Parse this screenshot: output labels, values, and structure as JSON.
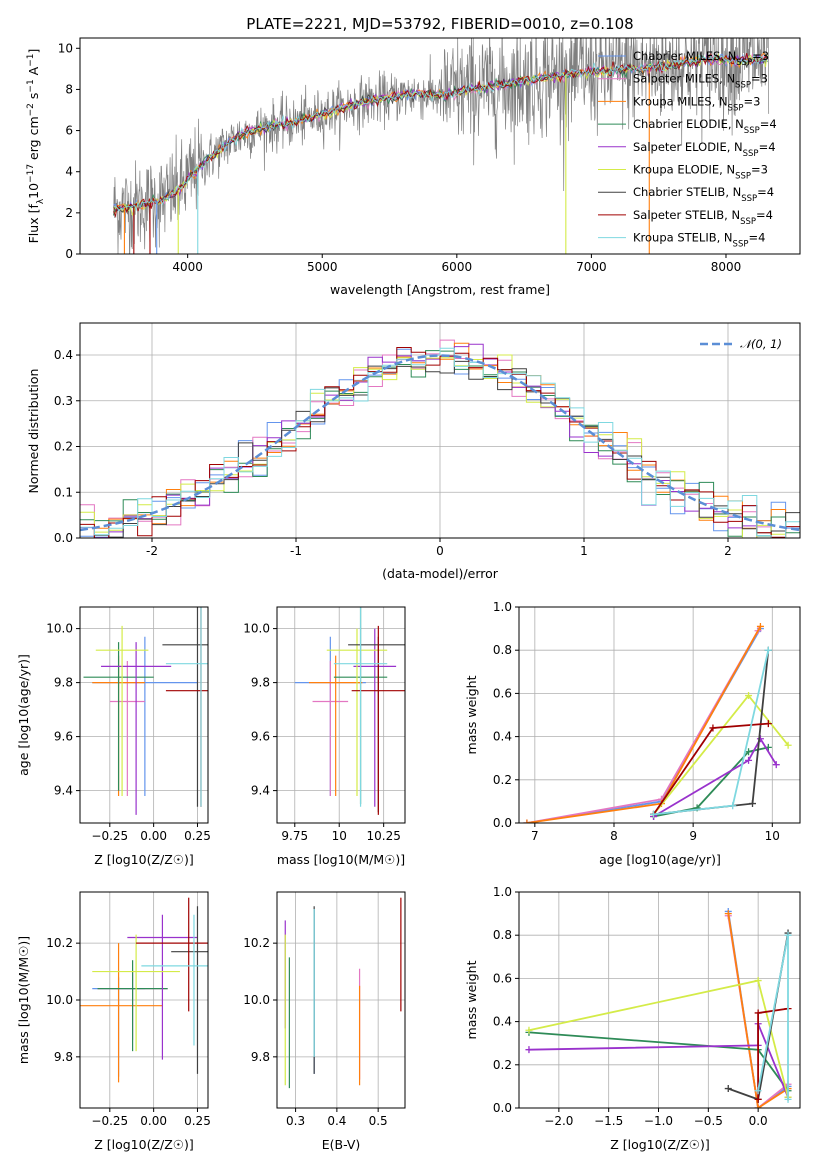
{
  "chart_data": [
    {
      "id": "spectrum",
      "type": "line",
      "title": "PLATE=2221, MJD=53792, FIBERID=0010, z=0.108",
      "xlabel": "wavelength [Angstrom, rest frame]",
      "ylabel": "Flux [f_λ10^-17 erg cm^-2 s^-1 A^-1]",
      "xlim": [
        3200,
        8550
      ],
      "ylim": [
        0,
        10.5
      ],
      "xticks": [
        4000,
        5000,
        6000,
        7000,
        8000
      ],
      "yticks": [
        0,
        2,
        4,
        6,
        8,
        10
      ],
      "grid": false,
      "data_continuum": {
        "x": [
          3450,
          3600,
          3800,
          3950,
          4050,
          4150,
          4300,
          4400,
          4600,
          4800,
          5000,
          5200,
          5300,
          5500,
          5700,
          5900,
          6100,
          6300,
          6500,
          6700,
          6900,
          7100,
          7300,
          7500,
          7700,
          7900,
          8100,
          8300
        ],
        "y": [
          2.2,
          2.3,
          2.6,
          3.2,
          4.0,
          4.6,
          5.4,
          5.8,
          6.2,
          6.4,
          6.8,
          7.2,
          7.4,
          7.6,
          7.8,
          7.7,
          8.0,
          8.2,
          8.4,
          8.6,
          8.8,
          8.9,
          9.0,
          9.1,
          9.3,
          9.5,
          9.4,
          9.5
        ]
      },
      "legend_position": "upper right",
      "legend": [
        {
          "label": "Chabrier MILES, N_SSP=3",
          "color": "#6495ed"
        },
        {
          "label": "Salpeter MILES, N_SSP=3",
          "color": "#e377c2"
        },
        {
          "label": "Kroupa MILES, N_SSP=3",
          "color": "#ff7f0e"
        },
        {
          "label": "Chabrier ELODIE, N_SSP=4",
          "color": "#2e8b57"
        },
        {
          "label": "Salpeter ELODIE, N_SSP=4",
          "color": "#9932cc"
        },
        {
          "label": "Kroupa ELODIE, N_SSP=3",
          "color": "#d4eb48"
        },
        {
          "label": "Chabrier STELIB, N_SSP=4",
          "color": "#404040"
        },
        {
          "label": "Salpeter STELIB, N_SSP=4",
          "color": "#a00000"
        },
        {
          "label": "Kroupa STELIB, N_SSP=4",
          "color": "#7fd8e0"
        }
      ]
    },
    {
      "id": "residuals",
      "type": "line",
      "xlabel": "(data-model)/error",
      "ylabel": "Normed distribution",
      "xlim": [
        -2.5,
        2.5
      ],
      "ylim": [
        0,
        0.47
      ],
      "xticks": [
        -2,
        -1,
        0,
        1,
        2
      ],
      "yticks": [
        0.0,
        0.1,
        0.2,
        0.3,
        0.4
      ],
      "grid": true,
      "legend_position": "upper right",
      "legend": [
        {
          "label": "N(0,1)",
          "color": "#5b8ed6",
          "style": "dashed"
        }
      ]
    },
    {
      "id": "age_vs_Z",
      "type": "scatter",
      "xlabel": "Z [log10(Z/Z☉)]",
      "ylabel": "age  [log10(age/yr)]",
      "xlim": [
        -0.42,
        0.31
      ],
      "ylim": [
        9.28,
        10.08
      ],
      "xticks": [
        -0.25,
        0.0,
        0.25
      ],
      "xticklabels": [
        "−0.25",
        "0.00",
        "0.25"
      ],
      "yticks": [
        9.4,
        9.6,
        9.8,
        10.0
      ],
      "grid": true,
      "points": [
        {
          "x": -0.05,
          "y": 9.8,
          "xerr": 0.3,
          "ylo": 9.38,
          "yhi": 9.97,
          "color": "#6495ed"
        },
        {
          "x": -0.15,
          "y": 9.73,
          "xerr": 0.1,
          "ylo": 9.38,
          "yhi": 9.88,
          "color": "#e377c2"
        },
        {
          "x": -0.2,
          "y": 9.8,
          "xerr": 0.15,
          "ylo": 9.38,
          "yhi": 9.9,
          "color": "#ff7f0e"
        },
        {
          "x": -0.2,
          "y": 9.82,
          "xerr": 0.2,
          "ylo": 9.4,
          "yhi": 9.95,
          "color": "#2e8b57"
        },
        {
          "x": -0.1,
          "y": 9.86,
          "xerr": 0.2,
          "ylo": 9.31,
          "yhi": 9.95,
          "color": "#9932cc"
        },
        {
          "x": -0.18,
          "y": 9.92,
          "xerr": 0.15,
          "ylo": 9.38,
          "yhi": 10.01,
          "color": "#d4eb48"
        },
        {
          "x": 0.25,
          "y": 9.94,
          "xerr": 0.2,
          "ylo": 9.34,
          "yhi": 10.11,
          "color": "#404040"
        },
        {
          "x": 0.27,
          "y": 9.77,
          "xerr": 0.2,
          "ylo": 9.34,
          "yhi": 10.09,
          "color": "#a00000"
        },
        {
          "x": 0.27,
          "y": 9.87,
          "xerr": 0.2,
          "ylo": 9.34,
          "yhi": 10.1,
          "color": "#7fd8e0"
        }
      ]
    },
    {
      "id": "age_vs_mass",
      "type": "scatter",
      "xlabel": "mass [log10(M/M☉)]",
      "xlim": [
        9.65,
        10.37
      ],
      "ylim": [
        9.28,
        10.08
      ],
      "xticks": [
        9.75,
        10.0,
        10.25
      ],
      "yticks": [
        9.4,
        9.6,
        9.8,
        10.0
      ],
      "grid": true,
      "points": [
        {
          "x": 9.95,
          "y": 9.8,
          "xerr": 0.2,
          "ylo": 9.38,
          "yhi": 9.97,
          "color": "#6495ed"
        },
        {
          "x": 9.95,
          "y": 9.73,
          "xerr": 0.1,
          "ylo": 9.38,
          "yhi": 9.88,
          "color": "#e377c2"
        },
        {
          "x": 9.98,
          "y": 9.8,
          "xerr": 0.15,
          "ylo": 9.38,
          "yhi": 9.9,
          "color": "#ff7f0e"
        },
        {
          "x": 10.12,
          "y": 9.82,
          "xerr": 0.15,
          "ylo": 9.35,
          "yhi": 10.09,
          "color": "#2e8b57"
        },
        {
          "x": 10.2,
          "y": 9.86,
          "xerr": 0.12,
          "ylo": 9.34,
          "yhi": 10.0,
          "color": "#9932cc"
        },
        {
          "x": 10.1,
          "y": 9.92,
          "xerr": 0.17,
          "ylo": 9.38,
          "yhi": 10.0,
          "color": "#d4eb48"
        },
        {
          "x": 10.22,
          "y": 9.94,
          "xerr": 0.17,
          "ylo": 9.32,
          "yhi": 9.97,
          "color": "#404040"
        },
        {
          "x": 10.22,
          "y": 9.77,
          "xerr": 0.15,
          "ylo": 9.31,
          "yhi": 10.01,
          "color": "#a00000"
        },
        {
          "x": 10.12,
          "y": 9.87,
          "xerr": 0.15,
          "ylo": 9.34,
          "yhi": 10.1,
          "color": "#7fd8e0"
        }
      ]
    },
    {
      "id": "weight_vs_age",
      "type": "line",
      "xlabel": "age  [log10(age/yr)]",
      "ylabel": "mass weight",
      "xlim": [
        6.8,
        10.35
      ],
      "ylim": [
        0,
        1.0
      ],
      "xticks": [
        7,
        8,
        9,
        10
      ],
      "yticks": [
        0.0,
        0.2,
        0.4,
        0.6,
        0.8,
        1.0
      ],
      "grid": true,
      "series": [
        {
          "color": "#6495ed",
          "x": [
            6.9,
            8.6,
            9.85
          ],
          "y": [
            0.0,
            0.1,
            0.9
          ]
        },
        {
          "color": "#e377c2",
          "x": [
            6.9,
            8.6,
            9.82
          ],
          "y": [
            0.0,
            0.11,
            0.89
          ]
        },
        {
          "color": "#ff7f0e",
          "x": [
            6.9,
            8.6,
            9.85
          ],
          "y": [
            0.0,
            0.09,
            0.91
          ]
        },
        {
          "color": "#2e8b57",
          "x": [
            8.5,
            9.05,
            9.7,
            9.95
          ],
          "y": [
            0.03,
            0.07,
            0.33,
            0.35
          ]
        },
        {
          "color": "#9932cc",
          "x": [
            8.5,
            9.7,
            9.85,
            10.05
          ],
          "y": [
            0.03,
            0.29,
            0.39,
            0.27
          ]
        },
        {
          "color": "#d4eb48",
          "x": [
            8.5,
            9.7,
            10.2
          ],
          "y": [
            0.04,
            0.59,
            0.36
          ]
        },
        {
          "color": "#404040",
          "x": [
            8.5,
            9.75,
            9.95
          ],
          "y": [
            0.04,
            0.09,
            0.8
          ]
        },
        {
          "color": "#a00000",
          "x": [
            8.5,
            9.25,
            9.95
          ],
          "y": [
            0.04,
            0.44,
            0.46
          ]
        },
        {
          "color": "#7fd8e0",
          "x": [
            8.5,
            9.5,
            9.95
          ],
          "y": [
            0.04,
            0.08,
            0.8
          ]
        }
      ]
    },
    {
      "id": "mass_vs_Z",
      "type": "scatter",
      "xlabel": "Z [log10(Z/Z☉)]",
      "ylabel": "mass [log10(M/M☉)]",
      "xlim": [
        -0.42,
        0.31
      ],
      "ylim": [
        9.62,
        10.38
      ],
      "xticks": [
        -0.25,
        0.0,
        0.25
      ],
      "xticklabels": [
        "−0.25",
        "0.00",
        "0.25"
      ],
      "yticks": [
        9.8,
        10.0,
        10.2
      ],
      "grid": true,
      "points": [
        {
          "x": -0.2,
          "y": 10.04,
          "xerr": 0.15,
          "ylo": 9.73,
          "yhi": 10.08,
          "color": "#6495ed"
        },
        {
          "x": -0.12,
          "y": 10.04,
          "xerr": 0.2,
          "ylo": 9.86,
          "yhi": 10.1,
          "color": "#e377c2"
        },
        {
          "x": -0.2,
          "y": 9.98,
          "xerr": 0.25,
          "ylo": 9.71,
          "yhi": 10.2,
          "color": "#ff7f0e"
        },
        {
          "x": -0.12,
          "y": 10.04,
          "xerr": 0.2,
          "ylo": 9.82,
          "yhi": 10.14,
          "color": "#2e8b57"
        },
        {
          "x": 0.05,
          "y": 10.22,
          "xerr": 0.2,
          "ylo": 9.79,
          "yhi": 10.3,
          "color": "#9932cc"
        },
        {
          "x": -0.1,
          "y": 10.1,
          "xerr": 0.25,
          "ylo": 9.82,
          "yhi": 10.23,
          "color": "#d4eb48"
        },
        {
          "x": 0.25,
          "y": 10.17,
          "xerr": 0.15,
          "ylo": 9.74,
          "yhi": 10.33,
          "color": "#404040"
        },
        {
          "x": 0.2,
          "y": 10.2,
          "xerr": 0.3,
          "ylo": 9.96,
          "yhi": 10.36,
          "color": "#a00000"
        },
        {
          "x": 0.23,
          "y": 10.12,
          "xerr": 0.3,
          "ylo": 9.84,
          "yhi": 10.3,
          "color": "#7fd8e0"
        }
      ]
    },
    {
      "id": "mass_vs_EBV",
      "type": "scatter",
      "xlabel": "E(B-V)",
      "xlim": [
        0.255,
        0.565
      ],
      "ylim": [
        9.62,
        10.38
      ],
      "xticks": [
        0.3,
        0.4,
        0.5
      ],
      "yticks": [
        9.8,
        10.0,
        10.2
      ],
      "grid": true,
      "points": [
        {
          "x": 0.345,
          "ylo": 9.74,
          "yhi": 10.32,
          "color": "#6495ed"
        },
        {
          "x": 0.455,
          "ylo": 9.72,
          "yhi": 10.11,
          "color": "#e377c2"
        },
        {
          "x": 0.455,
          "ylo": 9.7,
          "yhi": 10.05,
          "color": "#ff7f0e"
        },
        {
          "x": 0.285,
          "ylo": 9.69,
          "yhi": 10.15,
          "color": "#2e8b57"
        },
        {
          "x": 0.275,
          "ylo": 9.9,
          "yhi": 10.28,
          "color": "#9932cc"
        },
        {
          "x": 0.275,
          "ylo": 9.7,
          "yhi": 10.23,
          "color": "#d4eb48"
        },
        {
          "x": 0.345,
          "ylo": 9.74,
          "yhi": 10.33,
          "color": "#404040"
        },
        {
          "x": 0.555,
          "ylo": 9.96,
          "yhi": 10.36,
          "color": "#a00000"
        },
        {
          "x": 0.345,
          "ylo": 9.8,
          "yhi": 10.32,
          "color": "#7fd8e0"
        }
      ]
    },
    {
      "id": "weight_vs_Z",
      "type": "line",
      "xlabel": "Z [log10(Z/Z☉)]",
      "ylabel": "mass weight",
      "xlim": [
        -2.4,
        0.42
      ],
      "ylim": [
        0,
        1.0
      ],
      "xticks": [
        -2.0,
        -1.5,
        -1.0,
        -0.5,
        0.0
      ],
      "xticklabels": [
        "−2.0",
        "−1.5",
        "−1.0",
        "−0.5",
        "0.0"
      ],
      "yticks": [
        0.0,
        0.2,
        0.4,
        0.6,
        0.8,
        1.0
      ],
      "grid": true,
      "series": [
        {
          "color": "#6495ed",
          "x": [
            -0.3,
            0.0,
            0.3
          ],
          "y": [
            0.91,
            0.0,
            0.1
          ]
        },
        {
          "color": "#e377c2",
          "x": [
            -0.3,
            0.0,
            0.3
          ],
          "y": [
            0.89,
            0.0,
            0.11
          ]
        },
        {
          "color": "#ff7f0e",
          "x": [
            -0.3,
            0.0,
            0.3
          ],
          "y": [
            0.9,
            0.0,
            0.09
          ]
        },
        {
          "color": "#2e8b57",
          "x": [
            -2.3,
            0.0,
            0.3
          ],
          "y": [
            0.35,
            0.27,
            0.08
          ]
        },
        {
          "color": "#9932cc",
          "x": [
            -2.3,
            0.0,
            0.0,
            0.3
          ],
          "y": [
            0.27,
            0.29,
            0.39,
            0.05
          ]
        },
        {
          "color": "#d4eb48",
          "x": [
            -2.3,
            0.0,
            0.3
          ],
          "y": [
            0.36,
            0.59,
            0.05
          ]
        },
        {
          "color": "#404040",
          "x": [
            -0.3,
            0.0,
            0.3
          ],
          "y": [
            0.09,
            0.04,
            0.81
          ]
        },
        {
          "color": "#a00000",
          "x": [
            0.0,
            0.0,
            0.3
          ],
          "y": [
            0.04,
            0.44,
            0.46
          ]
        },
        {
          "color": "#7fd8e0",
          "x": [
            0.0,
            0.3,
            0.3
          ],
          "y": [
            0.08,
            0.8,
            0.04
          ]
        }
      ]
    }
  ]
}
